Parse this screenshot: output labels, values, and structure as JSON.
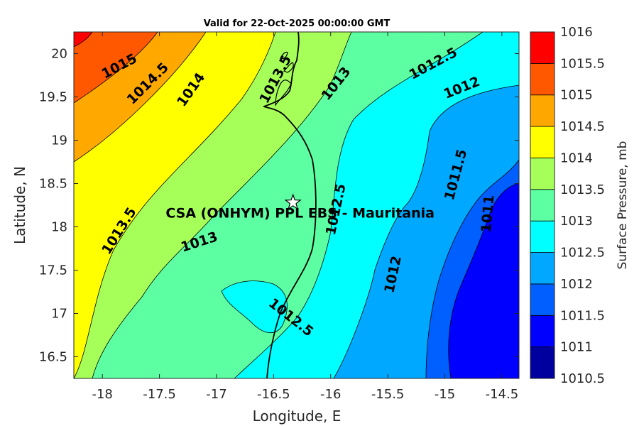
{
  "title": "Valid for 22-Oct-2025 00:00:00 GMT",
  "xlabel": "Longitude, E",
  "ylabel": "Latitude, N",
  "colorbar_label": "Surface Pressure, mb",
  "site_label": "CSA (ONHYM) PPL EBS - Mauritania",
  "chart_data": {
    "type": "contour-map",
    "title": "Valid for 22-Oct-2025 00:00:00 GMT",
    "xlabel": "Longitude, E",
    "ylabel": "Latitude, N",
    "xlim": [
      -18.25,
      -14.35
    ],
    "ylim": [
      16.25,
      20.25
    ],
    "x_ticks": [
      -18,
      -17.5,
      -17,
      -16.5,
      -16,
      -15.5,
      -15,
      -14.5
    ],
    "x_tick_labels": [
      "-18",
      "-17.5",
      "-17",
      "-16.5",
      "-16",
      "-15.5",
      "-15",
      "-14.5"
    ],
    "y_ticks": [
      16.5,
      17,
      17.5,
      18,
      18.5,
      19,
      19.5,
      20
    ],
    "y_tick_labels": [
      "16.5",
      "17",
      "17.5",
      "18",
      "18.5",
      "19",
      "19.5",
      "20"
    ],
    "site": {
      "name": "CSA (ONHYM) PPL EBS - Mauritania",
      "lon": -16.33,
      "lat": 18.28,
      "marker": "star"
    },
    "colorbar": {
      "label": "Surface Pressure, mb",
      "levels": [
        1010.5,
        1011,
        1011.5,
        1012,
        1012.5,
        1013,
        1013.5,
        1014,
        1014.5,
        1015,
        1015.5,
        1016
      ],
      "tick_labels": [
        "1016",
        "1015.5",
        "1015",
        "1014.5",
        "1014",
        "1013.5",
        "1013",
        "1012.5",
        "1012",
        "1011.5",
        "1011",
        "1010.5"
      ],
      "colors": [
        "#00009f",
        "#0000ff",
        "#0060ff",
        "#00a8ff",
        "#00ffff",
        "#5cffa2",
        "#a6ff58",
        "#ffff00",
        "#ffa800",
        "#ff5800",
        "#ff0000",
        "#a60000"
      ]
    },
    "contour_labels": [
      {
        "text": "1015",
        "lon": -17.85,
        "lat": 19.85,
        "angle": -28
      },
      {
        "text": "1014.5",
        "lon": -17.6,
        "lat": 19.65,
        "angle": -45
      },
      {
        "text": "1014",
        "lon": -17.22,
        "lat": 19.58,
        "angle": -55
      },
      {
        "text": "1013.5",
        "lon": -16.48,
        "lat": 19.7,
        "angle": -62
      },
      {
        "text": "1013",
        "lon": -15.95,
        "lat": 19.65,
        "angle": -52
      },
      {
        "text": "1012.5",
        "lon": -15.1,
        "lat": 19.88,
        "angle": -28
      },
      {
        "text": "1012",
        "lon": -14.85,
        "lat": 19.6,
        "angle": -22
      },
      {
        "text": "1013.5",
        "lon": -17.85,
        "lat": 17.95,
        "angle": -58
      },
      {
        "text": "1013",
        "lon": -17.15,
        "lat": 17.82,
        "angle": -18
      },
      {
        "text": "1012.5",
        "lon": -15.95,
        "lat": 18.2,
        "angle": -78
      },
      {
        "text": "1011.5",
        "lon": -14.9,
        "lat": 18.6,
        "angle": -75
      },
      {
        "text": "1011",
        "lon": -14.62,
        "lat": 18.15,
        "angle": -85
      },
      {
        "text": "1012",
        "lon": -15.45,
        "lat": 17.45,
        "angle": -78
      },
      {
        "text": "1012.5",
        "lon": -16.35,
        "lat": 16.95,
        "angle": 38
      }
    ]
  }
}
